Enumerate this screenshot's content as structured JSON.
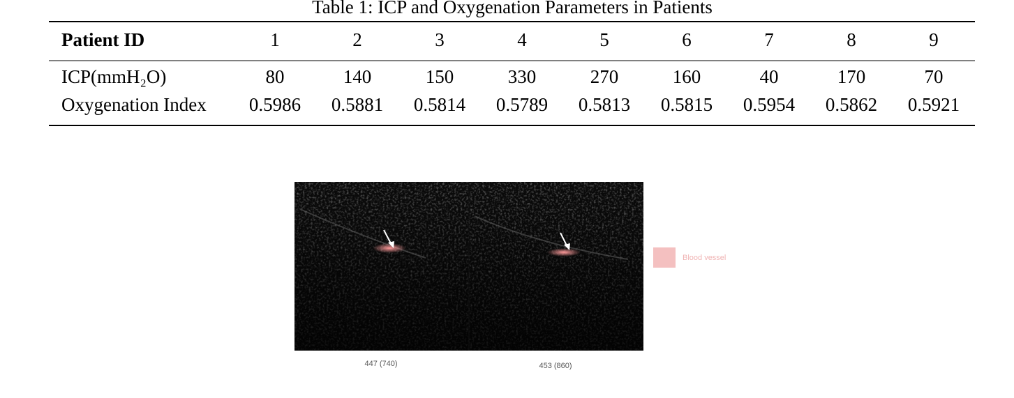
{
  "table": {
    "caption": "Table 1: ICP and Oxygenation Parameters in Patients",
    "header": [
      "Patient ID",
      "1",
      "2",
      "3",
      "4",
      "5",
      "6",
      "7",
      "8",
      "9"
    ],
    "rows": [
      [
        "ICP(mmH₂O)",
        "80",
        "140",
        "150",
        "330",
        "270",
        "160",
        "40",
        "170",
        "70"
      ],
      [
        "Oxygenation Index",
        "0.5986",
        "0.5881",
        "0.5814",
        "0.5789",
        "0.5813",
        "0.5815",
        "0.5954",
        "0.5862",
        "0.5921"
      ]
    ]
  },
  "figure": {
    "legend": "Blood vessel",
    "panels": [
      {
        "label": "447 (740)"
      },
      {
        "label": "453 (860)"
      }
    ]
  }
}
